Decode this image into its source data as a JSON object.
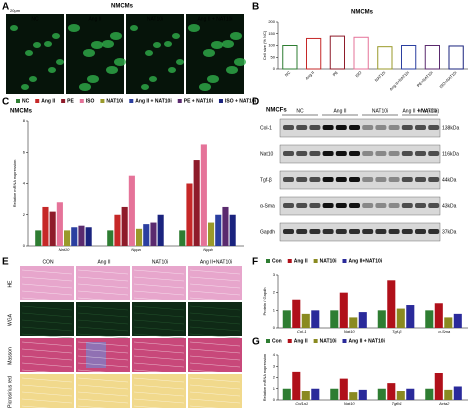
{
  "panel_a": {
    "label": "A",
    "title": "NMCMs",
    "scale": "20μm",
    "columns": [
      "NC",
      "Ang II",
      "NAT10i",
      "Ang II + NAT10i"
    ]
  },
  "panel_d": {
    "label": "D",
    "title": "NMCFs",
    "columns": [
      "NC",
      "Ang II",
      "NAT10i",
      "Ang II + NAT10i"
    ],
    "rows": [
      "Col-1",
      "Nat10",
      "Tgf-β",
      "α-Sma",
      "Gapdh"
    ],
    "mw_header": "MW(kDa)",
    "mw": [
      "138kDa",
      "116kDa",
      "44kDa",
      "43kDa",
      "37kDa"
    ]
  },
  "panel_e": {
    "label": "E",
    "columns": [
      "CON",
      "Ang II",
      "NAT10i",
      "Ang II+NAT10i"
    ],
    "rows": [
      "HE",
      "WGA",
      "Masson",
      "Picrosirius red"
    ]
  },
  "chart_data": [
    {
      "type": "bar",
      "label": "B",
      "title": "NMCMs",
      "ylabel": "Cell size (% NC)",
      "categories": [
        "NC",
        "Ang II",
        "PE",
        "ISO",
        "NAT10i",
        "Ang II+NAT10i",
        "PE+NAT10i",
        "ISO+NAT10i"
      ],
      "values": [
        100,
        130,
        140,
        135,
        95,
        100,
        100,
        98
      ],
      "colors": [
        "#2e7d32",
        "#c62828",
        "#8e1b2a",
        "#e57399",
        "#9a9a2a",
        "#2b3fa0",
        "#5a2a6e",
        "#1a237e"
      ],
      "ylim": [
        0,
        200
      ],
      "yticks": [
        0,
        50,
        100,
        150,
        200
      ]
    },
    {
      "type": "grouped-bar",
      "label": "C",
      "title": "NMCMs",
      "ylabel": "Relative mRNA expression",
      "categories": [
        "Nat10",
        "Nppa",
        "Nppb"
      ],
      "ylim": [
        0,
        8
      ],
      "yticks": [
        0,
        2,
        4,
        6,
        8
      ],
      "series": [
        {
          "name": "NC",
          "color": "#2e7d32",
          "values": [
            1,
            1,
            1
          ]
        },
        {
          "name": "Ang II",
          "color": "#c62828",
          "values": [
            2.5,
            2,
            4
          ]
        },
        {
          "name": "PE",
          "color": "#8e1b2a",
          "values": [
            2.2,
            2.5,
            5.5
          ]
        },
        {
          "name": "ISO",
          "color": "#e57399",
          "values": [
            2.8,
            4.5,
            6.5
          ]
        },
        {
          "name": "NAT10i",
          "color": "#9a9a2a",
          "values": [
            1,
            1.1,
            1.5
          ]
        },
        {
          "name": "Ang II + NAT10i",
          "color": "#2b3fa0",
          "values": [
            1.2,
            1.4,
            2
          ]
        },
        {
          "name": "PE + NAT10i",
          "color": "#5a2a6e",
          "values": [
            1.3,
            1.5,
            2.5
          ]
        },
        {
          "name": "ISO + NAT10i",
          "color": "#1a237e",
          "values": [
            1.2,
            2,
            2
          ]
        }
      ]
    },
    {
      "type": "grouped-bar",
      "label": "F",
      "ylabel": "Protein / Gapdh",
      "categories": [
        "Col-1",
        "Nat10",
        "Tgf-β",
        "α-Sma"
      ],
      "ylim": [
        0,
        3
      ],
      "yticks": [
        0,
        1,
        2,
        3
      ],
      "series": [
        {
          "name": "Con",
          "color": "#2e7d32",
          "values": [
            1,
            1,
            1,
            1
          ]
        },
        {
          "name": "Ang II",
          "color": "#b0101a",
          "values": [
            1.6,
            2,
            2.7,
            1.4
          ]
        },
        {
          "name": "NAT10i",
          "color": "#8a8a20",
          "values": [
            0.8,
            0.6,
            1.1,
            0.6
          ]
        },
        {
          "name": "Ang II+NAT10i",
          "color": "#2a2a9a",
          "values": [
            1,
            0.9,
            1.3,
            0.8
          ]
        }
      ]
    },
    {
      "type": "grouped-bar",
      "label": "G",
      "ylabel": "Relative mRNA expression",
      "categories": [
        "Col1a1",
        "Nat10",
        "Tgfb1",
        "Acta2"
      ],
      "ylim": [
        0,
        4
      ],
      "yticks": [
        0,
        1,
        2,
        3,
        4
      ],
      "series": [
        {
          "name": "Con",
          "color": "#2e7d32",
          "values": [
            1,
            1,
            1,
            1
          ]
        },
        {
          "name": "Ang II",
          "color": "#b0101a",
          "values": [
            2.5,
            1.9,
            1.5,
            2.4
          ]
        },
        {
          "name": "NAT10i",
          "color": "#8a8a20",
          "values": [
            0.8,
            0.7,
            0.8,
            0.9
          ]
        },
        {
          "name": "Ang II + NAT10i",
          "color": "#2a2a9a",
          "values": [
            1,
            0.9,
            1,
            1.2
          ]
        }
      ]
    }
  ]
}
